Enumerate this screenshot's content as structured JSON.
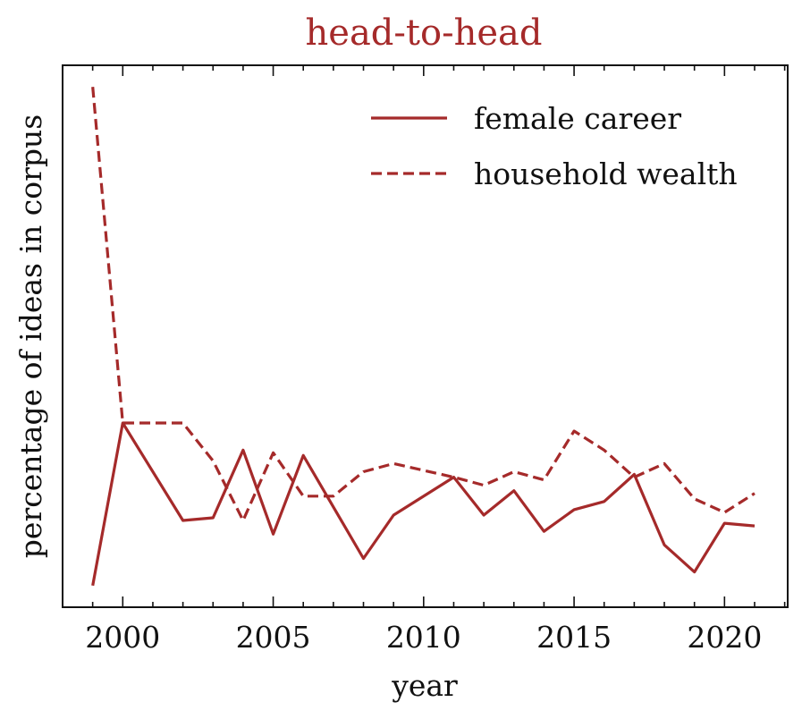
{
  "chart_data": {
    "type": "line",
    "title": "head-to-head",
    "xlabel": "year",
    "ylabel": "percentage of ideas in corpus",
    "xlim": [
      1998,
      2022.1
    ],
    "ylim": [
      0,
      1
    ],
    "x_ticks": [
      2000,
      2005,
      2010,
      2015,
      2020
    ],
    "x_tick_labels": [
      "2000",
      "2005",
      "2010",
      "2015",
      "2020"
    ],
    "y_tick_labels_visible": false,
    "legend_position": "top-right",
    "series": [
      {
        "name": "female career",
        "style": "solid",
        "color": "#a52a2a",
        "x": [
          1999,
          2000,
          2002,
          2003,
          2004,
          2005,
          2006,
          2008,
          2009,
          2011,
          2012,
          2013,
          2014,
          2015,
          2016,
          2017,
          2018,
          2019,
          2020,
          2021
        ],
        "y": [
          0.04,
          0.34,
          0.16,
          0.165,
          0.29,
          0.135,
          0.28,
          0.09,
          0.17,
          0.24,
          0.17,
          0.215,
          0.14,
          0.18,
          0.195,
          0.245,
          0.115,
          0.065,
          0.155,
          0.15
        ]
      },
      {
        "name": "household wealth",
        "style": "dashed",
        "color": "#a52a2a",
        "x": [
          1999,
          2000,
          2002,
          2003,
          2004,
          2005,
          2006,
          2007,
          2008,
          2009,
          2011,
          2012,
          2013,
          2014,
          2015,
          2016,
          2017,
          2018,
          2019,
          2020,
          2021
        ],
        "y": [
          0.96,
          0.34,
          0.34,
          0.27,
          0.16,
          0.285,
          0.205,
          0.205,
          0.25,
          0.265,
          0.24,
          0.225,
          0.25,
          0.235,
          0.325,
          0.29,
          0.24,
          0.265,
          0.2,
          0.175,
          0.21
        ]
      }
    ]
  }
}
